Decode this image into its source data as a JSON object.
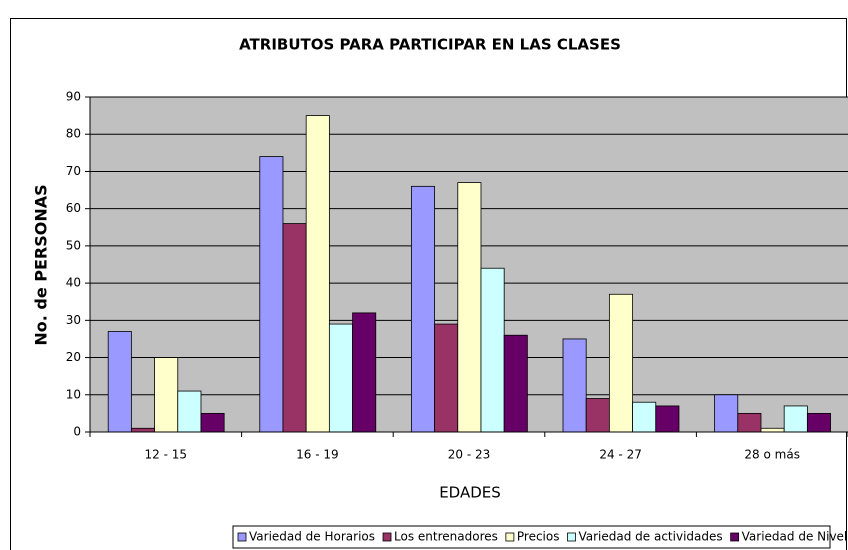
{
  "chart_data": {
    "type": "bar",
    "title": "ATRIBUTOS PARA PARTICIPAR EN LAS CLASES",
    "xlabel": "EDADES",
    "ylabel": "No. de PERSONAS",
    "categories": [
      "12 - 15",
      "16 - 19",
      "20 - 23",
      "24 - 27",
      "28 o más"
    ],
    "series": [
      {
        "name": "Variedad de Horarios",
        "color": "#9999ff",
        "values": [
          27,
          74,
          66,
          25,
          10
        ]
      },
      {
        "name": "Los entrenadores",
        "color": "#993366",
        "values": [
          1,
          56,
          29,
          9,
          5
        ]
      },
      {
        "name": "Precios",
        "color": "#ffffcc",
        "values": [
          20,
          85,
          67,
          37,
          1
        ]
      },
      {
        "name": "Variedad de actividades",
        "color": "#ccffff",
        "values": [
          11,
          29,
          44,
          8,
          7
        ]
      },
      {
        "name": "Variedad de Niveles",
        "color": "#660066",
        "values": [
          5,
          32,
          26,
          7,
          5
        ]
      }
    ],
    "ylim": [
      0,
      90
    ],
    "yticks": [
      0,
      10,
      20,
      30,
      40,
      50,
      60,
      70,
      80,
      90
    ],
    "grid": true,
    "legend": "bottom",
    "plot_background": "#c0c0c0"
  }
}
